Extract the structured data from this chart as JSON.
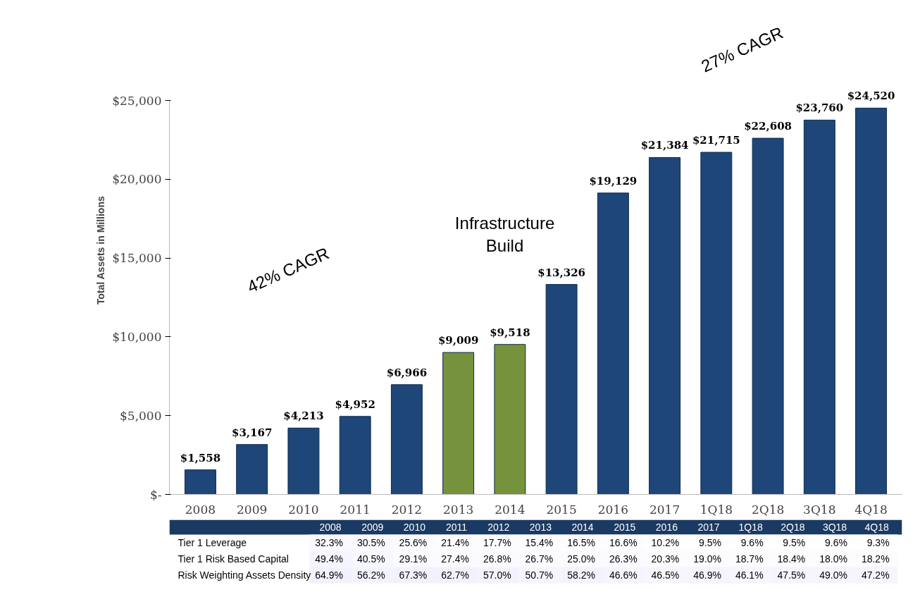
{
  "chart_data": [
    {
      "type": "bar",
      "ylabel": "Total Assets in Millions",
      "categories": [
        "2008",
        "2009",
        "2010",
        "2011",
        "2012",
        "2013",
        "2014",
        "2015",
        "2016",
        "2017",
        "1Q18",
        "2Q18",
        "3Q18",
        "4Q18"
      ],
      "values": [
        1558,
        3167,
        4213,
        4952,
        6966,
        9009,
        9518,
        13326,
        19129,
        21384,
        21715,
        22608,
        23760,
        24520
      ],
      "colors": [
        "#1f4679",
        "#1f4679",
        "#1f4679",
        "#1f4679",
        "#1f4679",
        "#76923c",
        "#76923c",
        "#1f4679",
        "#1f4679",
        "#1f4679",
        "#1f4679",
        "#1f4679",
        "#1f4679",
        "#1f4679"
      ],
      "value_labels": [
        "$1,558",
        "$3,167",
        "$4,213",
        "$4,952",
        "$6,966",
        "$9,009",
        "$9,518",
        "$13,326",
        "$19,129",
        "$21,384",
        "$21,715",
        "$22,608",
        "$23,760",
        "$24,520"
      ],
      "ylim": [
        0,
        25000
      ],
      "yticks": [
        {
          "value": 0,
          "label": "$-"
        },
        {
          "value": 5000,
          "label": "$5,000"
        },
        {
          "value": 10000,
          "label": "$10,000"
        },
        {
          "value": 15000,
          "label": "$15,000"
        },
        {
          "value": 20000,
          "label": "$20,000"
        },
        {
          "value": 25000,
          "label": "$25,000"
        }
      ],
      "grid": false,
      "annotations": [
        "42% CAGR",
        "Infrastructure Build",
        "27% CAGR"
      ]
    },
    {
      "type": "heatmap",
      "categories": [
        "2008",
        "2009",
        "2010",
        "2011",
        "2012",
        "2013",
        "2014",
        "2015",
        "2016",
        "2017",
        "1Q18",
        "2Q18",
        "3Q18",
        "4Q18"
      ],
      "y_categories": [
        "Tier 1 Leverage",
        "Tier 1 Risk Based Capital",
        "Risk Weighting Assets Density"
      ],
      "cells": [
        [
          32.3,
          30.5,
          25.6,
          21.4,
          17.7,
          15.4,
          16.5,
          16.6,
          10.2,
          9.5,
          9.6,
          9.5,
          9.6,
          9.3
        ],
        [
          49.4,
          40.5,
          29.1,
          27.4,
          26.8,
          26.7,
          25.0,
          26.3,
          20.3,
          19.0,
          18.7,
          18.4,
          18.0,
          18.2
        ],
        [
          64.9,
          56.2,
          67.3,
          62.7,
          57.0,
          50.7,
          58.2,
          46.6,
          46.5,
          46.9,
          46.1,
          47.5,
          49.0,
          47.2
        ]
      ],
      "cell_labels": [
        [
          "32.3%",
          "30.5%",
          "25.6%",
          "21.4%",
          "17.7%",
          "15.4%",
          "16.5%",
          "16.6%",
          "10.2%",
          "9.5%",
          "9.6%",
          "9.5%",
          "9.6%",
          "9.3%"
        ],
        [
          "49.4%",
          "40.5%",
          "29.1%",
          "27.4%",
          "26.8%",
          "26.7%",
          "25.0%",
          "26.3%",
          "20.3%",
          "19.0%",
          "18.7%",
          "18.4%",
          "18.0%",
          "18.2%"
        ],
        [
          "64.9%",
          "56.2%",
          "67.3%",
          "62.7%",
          "57.0%",
          "50.7%",
          "58.2%",
          "46.6%",
          "46.5%",
          "46.9%",
          "46.1%",
          "47.5%",
          "49.0%",
          "47.2%"
        ]
      ]
    }
  ]
}
